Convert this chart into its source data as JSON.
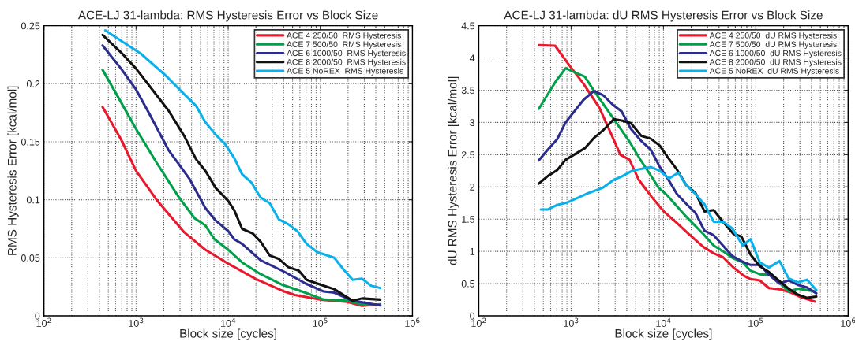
{
  "chart_data": [
    {
      "type": "line",
      "title": "ACE-LJ 31-lambda: RMS Hysteresis Error vs Block Size",
      "xlabel": "Block size [cycles]",
      "ylabel": "RMS Hysteresis Error [kcal/mol]",
      "log": "x",
      "grid": true,
      "legend": "top right",
      "line_style": "solid",
      "marker": "none",
      "xlim": [
        100,
        1000000
      ],
      "xticks": [
        {
          "value": 100,
          "label": "10$^{2}$"
        },
        {
          "value": 1000,
          "label": "10$^{3}$"
        },
        {
          "value": 10000,
          "label": "10$^{4}$"
        },
        {
          "value": 100000,
          "label": "10$^{5}$"
        },
        {
          "value": 1000000,
          "label": "10$^{6}$"
        }
      ],
      "ylim": [
        0,
        0.25
      ],
      "yticks": [
        0,
        0.05,
        0.1,
        0.15,
        0.2,
        0.25
      ],
      "series": [
        {
          "name": "ACE 4 250/50  RMS Hysteresis",
          "color": "#e8192c",
          "x": [
            433,
            687,
            1000,
            1670,
            3334,
            5641,
            10000,
            19680,
            40620,
            52830,
            100000,
            196900,
            282500,
            447700
          ],
          "values": [
            0.18,
            0.152,
            0.125,
            0.1,
            0.072,
            0.057,
            0.045,
            0.032,
            0.021,
            0.018,
            0.014,
            0.012,
            0.0086,
            0.01
          ]
        },
        {
          "name": "ACE 7 500/50  RMS Hysteresis",
          "color": "#00a04a",
          "x": [
            433,
            687,
            1000,
            1670,
            2922,
            4335,
            5641,
            7100,
            10000,
            14160,
            22440,
            38000,
            68700,
            109000,
            196900,
            292300,
            447700
          ],
          "values": [
            0.212,
            0.184,
            0.161,
            0.132,
            0.102,
            0.084,
            0.078,
            0.066,
            0.057,
            0.046,
            0.036,
            0.027,
            0.02,
            0.014,
            0.013,
            0.0097,
            0.0097
          ]
        },
        {
          "name": "ACE 6 1000/50  RMS Hysteresis",
          "color": "#2b2c8c",
          "x": [
            433,
            687,
            1000,
            1417,
            2246,
            3802,
            5641,
            7342,
            10000,
            11630,
            14160,
            22440,
            40620,
            68700,
            109000,
            141700,
            224500,
            447700
          ],
          "values": [
            0.233,
            0.213,
            0.195,
            0.173,
            0.143,
            0.118,
            0.093,
            0.082,
            0.073,
            0.066,
            0.062,
            0.048,
            0.038,
            0.028,
            0.021,
            0.02,
            0.013,
            0.009
          ]
        },
        {
          "name": "ACE 8 2000/50  RMS Hysteresis",
          "color": "#111111",
          "x": [
            433,
            687,
            1000,
            2246,
            3334,
            4479,
            5641,
            7342,
            10000,
            11630,
            14160,
            18450,
            22440,
            28250,
            35560,
            44760,
            58300,
            71000,
            109000,
            141700,
            224500,
            282500,
            447700
          ],
          "values": [
            0.242,
            0.227,
            0.213,
            0.177,
            0.155,
            0.135,
            0.125,
            0.11,
            0.099,
            0.091,
            0.075,
            0.071,
            0.064,
            0.052,
            0.049,
            0.042,
            0.039,
            0.031,
            0.026,
            0.023,
            0.013,
            0.015,
            0.014
          ]
        },
        {
          "name": "ACE 5 NoREX  RMS Hysteresis",
          "color": "#0ab0ea",
          "x": [
            463,
            687,
            1125,
            2103,
            3334,
            4479,
            5641,
            7342,
            9241,
            11630,
            14160,
            17830,
            22440,
            28250,
            35560,
            44760,
            56380,
            71000,
            92500,
            141700,
            178300,
            224500,
            282500,
            355800,
            447700
          ],
          "values": [
            0.246,
            0.237,
            0.226,
            0.207,
            0.191,
            0.181,
            0.167,
            0.156,
            0.148,
            0.136,
            0.122,
            0.115,
            0.102,
            0.097,
            0.083,
            0.079,
            0.073,
            0.062,
            0.055,
            0.05,
            0.04,
            0.031,
            0.032,
            0.026,
            0.024
          ]
        }
      ]
    },
    {
      "type": "line",
      "title": "ACE-LJ 31-lambda: dU RMS Hysteresis Error vs Block Size",
      "xlabel": "Block size [cycles]",
      "ylabel": "dU RMS Hysteresis Error [kcal/mol]",
      "log": "x",
      "grid": true,
      "legend": "top right",
      "line_style": "solid",
      "marker": "none",
      "xlim": [
        100,
        1000000
      ],
      "xticks": [
        {
          "value": 100,
          "label": "10$^{2}$"
        },
        {
          "value": 1000,
          "label": "10$^{3}$"
        },
        {
          "value": 10000,
          "label": "10$^{4}$"
        },
        {
          "value": 100000,
          "label": "10$^{5}$"
        },
        {
          "value": 1000000,
          "label": "10$^{6}$"
        }
      ],
      "ylim": [
        0,
        4.5
      ],
      "yticks": [
        0,
        0.5,
        1,
        1.5,
        2,
        2.5,
        3,
        3.5,
        4,
        4.5
      ],
      "series": [
        {
          "name": "ACE 4 250/50  dU RMS Hysteresis",
          "color": "#e8192c",
          "x": [
            446,
            670,
            918,
            1361,
            2018,
            2712,
            3411,
            4290,
            5397,
            7495,
            10060,
            13970,
            18790,
            26930,
            34990,
            44040,
            57280,
            74450,
            87770,
            110400,
            138700,
            186500,
            242600,
            295400,
            437700
          ],
          "values": [
            4.2,
            4.19,
            3.92,
            3.6,
            3.23,
            2.82,
            2.5,
            2.42,
            2.11,
            1.84,
            1.62,
            1.44,
            1.27,
            1.07,
            0.97,
            0.91,
            0.75,
            0.62,
            0.57,
            0.55,
            0.43,
            0.41,
            0.36,
            0.3,
            0.22
          ]
        },
        {
          "name": "ACE 7 500/50  dU RMS Hysteresis",
          "color": "#00a04a",
          "x": [
            446,
            684,
            871,
            1407,
            1770,
            2712,
            4290,
            5575,
            7495,
            8833,
            11110,
            17580,
            26930,
            34990,
            45500,
            57280,
            72070,
            87770,
            114000,
            143600,
            227000,
            285600,
            437700
          ],
          "values": [
            3.21,
            3.64,
            3.84,
            3.71,
            3.49,
            3.11,
            2.7,
            2.43,
            2.15,
            1.99,
            1.86,
            1.54,
            1.27,
            1.09,
            0.99,
            0.89,
            0.83,
            0.7,
            0.64,
            0.64,
            0.38,
            0.42,
            0.38
          ]
        },
        {
          "name": "ACE 6 1000/50  dU RMS Hysteresis",
          "color": "#2b2c8c",
          "x": [
            446,
            561,
            706,
            871,
            1361,
            1770,
            2228,
            2800,
            3524,
            4432,
            5767,
            7247,
            9120,
            11110,
            13970,
            17580,
            22130,
            27810,
            34990,
            44040,
            55430,
            69670,
            87770,
            110400,
            138700,
            180400,
            227000,
            285600,
            359400,
            452200
          ],
          "values": [
            2.41,
            2.58,
            2.74,
            3.0,
            3.35,
            3.49,
            3.42,
            3.28,
            3.17,
            2.9,
            2.71,
            2.58,
            2.31,
            2.13,
            1.89,
            1.74,
            1.6,
            1.32,
            1.25,
            1.09,
            0.93,
            0.85,
            0.79,
            0.79,
            0.64,
            0.5,
            0.55,
            0.48,
            0.44,
            0.35
          ]
        },
        {
          "name": "ACE 8 2000/50  dU RMS Hysteresis",
          "color": "#111111",
          "x": [
            446,
            561,
            706,
            871,
            1407,
            1770,
            2228,
            2897,
            3524,
            4432,
            5767,
            7247,
            9120,
            11110,
            13970,
            17580,
            22130,
            27810,
            34990,
            44040,
            57280,
            69670,
            87770,
            110400,
            138700,
            180400,
            227000,
            285600,
            359400,
            452200
          ],
          "values": [
            2.05,
            2.17,
            2.26,
            2.42,
            2.6,
            2.76,
            2.88,
            3.05,
            3.03,
            2.99,
            2.79,
            2.75,
            2.64,
            2.46,
            2.27,
            2.03,
            1.91,
            1.62,
            1.64,
            1.46,
            1.27,
            1.23,
            0.95,
            0.77,
            0.68,
            0.54,
            0.42,
            0.33,
            0.28,
            0.3
          ]
        },
        {
          "name": "ACE 5 NoREX  dU RMS Hysteresis",
          "color": "#0ab0ea",
          "x": [
            470,
            561,
            706,
            918,
            1454,
            2228,
            2897,
            3524,
            4583,
            7247,
            9120,
            11480,
            14450,
            17580,
            22130,
            27810,
            34990,
            44040,
            55430,
            72070,
            87770,
            110400,
            138700,
            180400,
            227000,
            285600,
            359400,
            452200
          ],
          "values": [
            1.65,
            1.65,
            1.72,
            1.76,
            1.89,
            1.99,
            2.11,
            2.16,
            2.25,
            2.31,
            2.25,
            2.13,
            2.22,
            2.03,
            1.89,
            1.73,
            1.46,
            1.46,
            1.36,
            1.09,
            1.19,
            0.83,
            0.75,
            0.85,
            0.58,
            0.52,
            0.56,
            0.4
          ]
        }
      ]
    }
  ]
}
